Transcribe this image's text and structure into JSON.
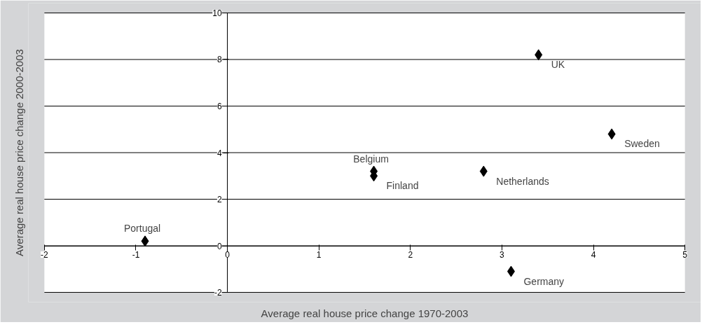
{
  "chart_data": {
    "type": "scatter",
    "xlabel": "Average real house price change 1970-2003",
    "ylabel": "Average real house price change 2000-2003",
    "x": [
      3.4,
      4.2,
      1.6,
      1.6,
      2.8,
      -0.9,
      3.1
    ],
    "values": [
      8.2,
      4.8,
      3.2,
      3.0,
      3.2,
      0.2,
      -1.1
    ],
    "color": "#000000",
    "marker": "diamond",
    "grid": "y",
    "xlim": [
      -2,
      5
    ],
    "ylim": [
      -2,
      10
    ],
    "xticks": [
      -2,
      -1,
      0,
      1,
      2,
      3,
      4,
      5
    ],
    "yticks": [
      -2,
      0,
      2,
      4,
      6,
      8,
      10
    ],
    "annotations": [
      {
        "text": "UK",
        "x": 3.4,
        "y": 8.2
      },
      {
        "text": "Sweden",
        "x": 4.2,
        "y": 4.8
      },
      {
        "text": "Belgium",
        "x": 1.6,
        "y": 3.2
      },
      {
        "text": "Finland",
        "x": 1.6,
        "y": 3.0
      },
      {
        "text": "Netherlands",
        "x": 2.8,
        "y": 3.2
      },
      {
        "text": "Portugal",
        "x": -0.9,
        "y": 0.2
      },
      {
        "text": "Germany",
        "x": 3.1,
        "y": -1.1
      }
    ]
  }
}
